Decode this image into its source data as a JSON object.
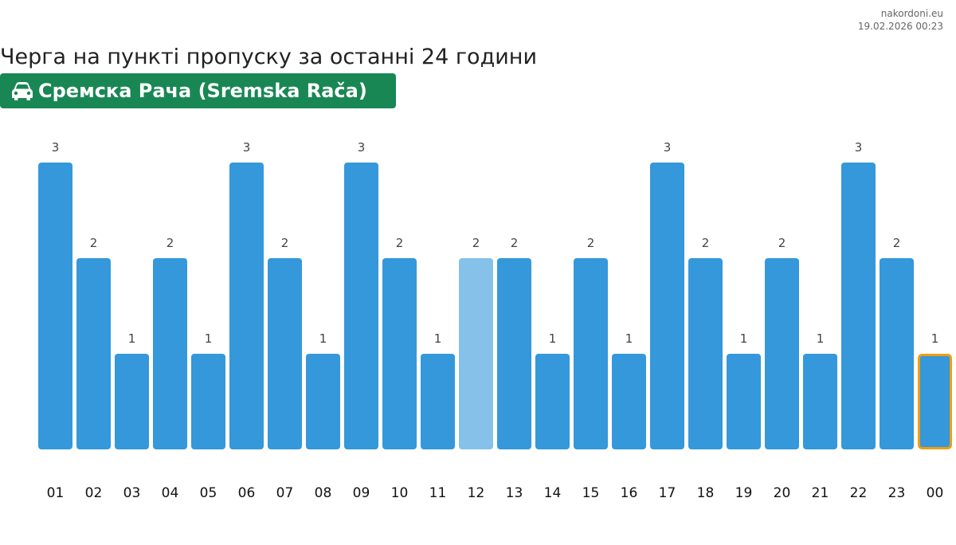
{
  "header": {
    "site": "nakordoni.eu",
    "timestamp": "19.02.2026 00:23"
  },
  "title": "Черга на пункті пропуску за останні 24 години",
  "badge": {
    "icon": "car-icon",
    "label": "Сремска Рача (Sremska Rača)",
    "color": "#198754"
  },
  "colors": {
    "bar": "#3498db",
    "bar_current_hour": "#85c1e9",
    "bar_selected_outline": "#f39c12"
  },
  "chart_data": {
    "type": "bar",
    "categories": [
      "01",
      "02",
      "03",
      "04",
      "05",
      "06",
      "07",
      "08",
      "09",
      "10",
      "11",
      "12",
      "13",
      "14",
      "15",
      "16",
      "17",
      "18",
      "19",
      "20",
      "21",
      "22",
      "23",
      "00"
    ],
    "values": [
      3,
      2,
      1,
      2,
      1,
      3,
      2,
      1,
      3,
      2,
      1,
      2,
      2,
      1,
      2,
      1,
      3,
      2,
      1,
      2,
      1,
      3,
      2,
      1
    ],
    "ylim": [
      0,
      3
    ],
    "grid": false,
    "legend": "none",
    "data_labels": true,
    "highlighted_light": "12",
    "highlighted_outline": "00"
  }
}
